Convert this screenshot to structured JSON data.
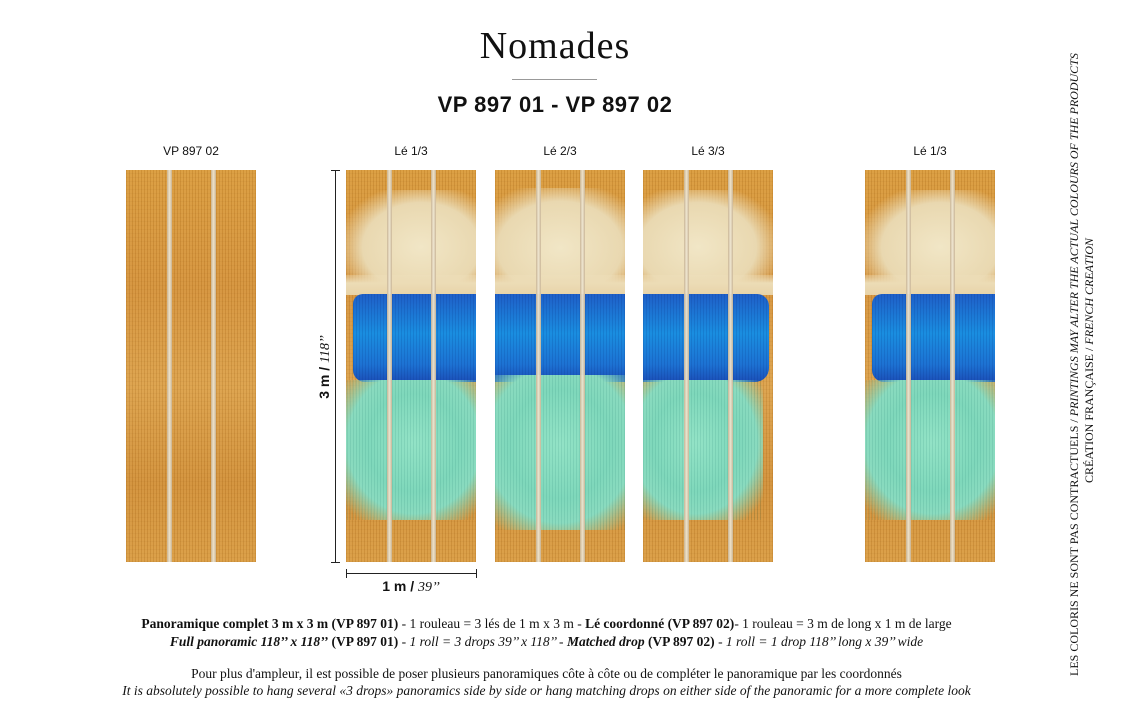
{
  "header": {
    "title": "Nomades",
    "subtitle": "VP 897 01 - VP 897 02"
  },
  "panels": {
    "matched_drop_label": "VP 897 02",
    "drop1_label": "Lé 1/3",
    "drop2_label": "Lé 2/3",
    "drop3_label": "Lé 3/3",
    "right_drop_label": "Lé 1/3"
  },
  "dimensions": {
    "height_metric": "3 m / ",
    "height_imperial": "118’’",
    "width_metric": "1 m / ",
    "width_imperial": "39’’"
  },
  "description": {
    "fr_line1": {
      "p1": "Panoramique complet 3 m x 3 m",
      "p2": " (VP 897 01)",
      "p3": " - 1 rouleau = 3 lés de 1 m x 3 m - ",
      "p4": "Lé coordonné",
      "p5": " (VP 897 02)",
      "p6": "- 1 rouleau = 3 m de long x 1 m de large"
    },
    "en_line1": {
      "p1": "Full panoramic 118’’ x 118’’",
      "p2": " (VP 897 01)",
      "p3": " - 1 roll = 3 drops 39’’ x 118’’ - ",
      "p4": "Matched drop",
      "p5": " (VP 897 02)",
      "p6": " - 1 roll = 1 drop 118’’ long x 39’’ wide"
    },
    "fr_line2": "Pour plus d'ampleur, il est possible de poser plusieurs panoramiques côte à côte ou de compléter le panoramique par les coordonnés",
    "en_line2": "It is absolutely possible to hang several «3 drops» panoramics side by side or hang matching drops on either side of the panoramic for a more complete look"
  },
  "side_notes": {
    "colors_fr": "LES COLORIS NE SONT PAS CONTRACTUELS",
    "separator": " / ",
    "colors_en": "PRINTINGS MAY ALTER THE ACTUAL COLOURS OF THE PRODUCTS",
    "creation_fr": "CRÉATION FRANÇAISE",
    "creation_en": "FRENCH CREATION"
  },
  "colors": {
    "ochre": "#d99a3c",
    "blue": "#1a8ee0",
    "teal": "#7fd8bb",
    "cream": "#ecdcb6"
  }
}
